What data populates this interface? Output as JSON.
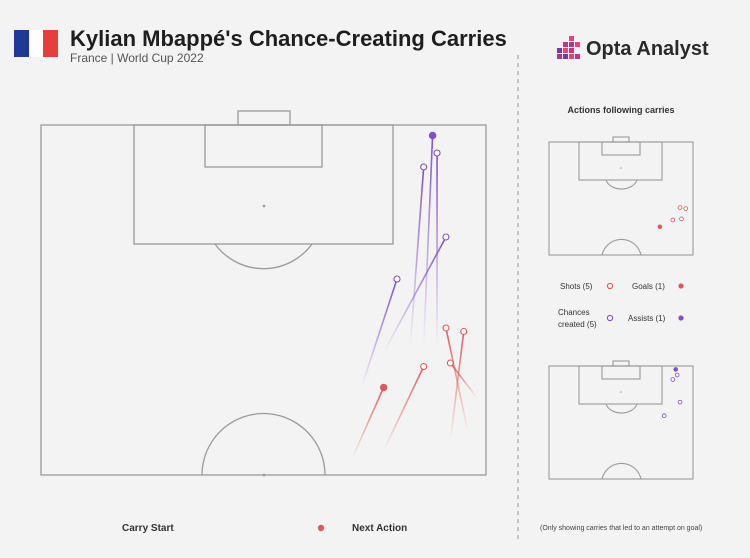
{
  "header": {
    "title": "Kylian Mbappé's Chance-Creating Carries",
    "subtitle": "France | World Cup 2022",
    "flag_colors": [
      "#1f3a93",
      "#ffffff",
      "#e63d3d"
    ]
  },
  "brand": {
    "name": "Opta Analyst",
    "logo_icon": "opta-pixel-logo-icon"
  },
  "sidebar": {
    "title": "Actions following carries",
    "legend": {
      "shots": "Shots (5)",
      "goals": "Goals (1)",
      "chances": "Chances\ncreated (5)",
      "assists": "Assists (1)"
    }
  },
  "bottom": {
    "carry_start": "Carry Start",
    "next_action": "Next Action",
    "footnote": "(Only showing carries that led to an attempt on goal)"
  },
  "colors": {
    "shot": "#e05a5a",
    "chance": "#7e50cc",
    "pitch_line": "#9a9a9a",
    "background": "#f3f3f3"
  },
  "chart_data": {
    "type": "scatter",
    "series": [
      {
        "name": "Shots",
        "color": "#e05a5a",
        "carries": [
          {
            "start": [
              77,
              93
            ],
            "end": [
              86,
              69
            ]
          },
          {
            "start": [
              98,
              78
            ],
            "end": [
              92,
              68
            ]
          },
          {
            "start": [
              96,
              88
            ],
            "end": [
              91,
              58
            ]
          },
          {
            "start": [
              92,
              90
            ],
            "end": [
              95,
              59
            ]
          },
          {
            "start": [
              70,
              95
            ],
            "end": [
              77,
              75
            ],
            "goal": true
          }
        ]
      },
      {
        "name": "Chances created",
        "color": "#7e50cc",
        "carries": [
          {
            "start": [
              86,
              63
            ],
            "end": [
              88,
              3
            ],
            "assist": true
          },
          {
            "start": [
              89,
              63
            ],
            "end": [
              89,
              8
            ]
          },
          {
            "start": [
              83,
              63
            ],
            "end": [
              86,
              12
            ]
          },
          {
            "start": [
              77,
              65
            ],
            "end": [
              91,
              32
            ]
          },
          {
            "start": [
              72,
              75
            ],
            "end": [
              80,
              44
            ]
          }
        ]
      }
    ]
  }
}
